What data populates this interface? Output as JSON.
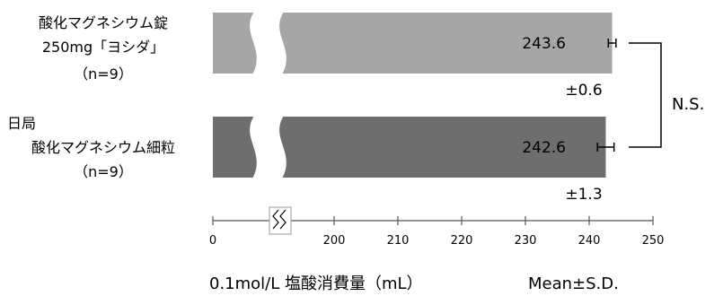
{
  "chart_data": {
    "type": "bar",
    "orientation": "horizontal",
    "categories": [
      [
        "酸化マグネシウム錠",
        "250mg「ヨシダ」",
        "（n=9）"
      ],
      [
        "日局",
        "酸化マグネシウム細粒",
        "（n=9）"
      ]
    ],
    "values": [
      243.6,
      242.6
    ],
    "sd": [
      0.6,
      1.3
    ],
    "value_labels": [
      "243.6",
      "242.6"
    ],
    "sd_labels": [
      "±0.6",
      "±1.3"
    ],
    "bar_colors": [
      "#a6a6a6",
      "#6e6e6e"
    ],
    "axis_break": true,
    "x_ticks": [
      0,
      200,
      210,
      220,
      230,
      240,
      250
    ],
    "x_tick_labels": [
      "0",
      "200",
      "210",
      "220",
      "230",
      "240",
      "250"
    ],
    "xlabel": "0.1mol/L 塩酸消費量（mL）",
    "stat_note": "Mean±S.D.",
    "significance": "N.S.",
    "grid": false
  }
}
